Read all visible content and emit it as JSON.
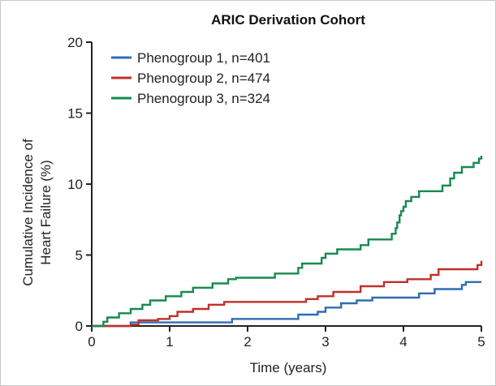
{
  "chart_data": {
    "type": "line",
    "title": "ARIC Derivation Cohort",
    "xlabel": "Time (years)",
    "ylabel_lines": [
      "Cumulative Incidence of",
      "Heart Failure (%)"
    ],
    "xlim": [
      0,
      5
    ],
    "ylim": [
      0,
      20
    ],
    "x_ticks": [
      "0",
      "1",
      "2",
      "3",
      "4",
      "5"
    ],
    "y_ticks": [
      "0",
      "5",
      "10",
      "15",
      "20"
    ],
    "grid": false,
    "legend_position": "top-left",
    "step": true,
    "series": [
      {
        "name": "Phenogroup 1, n=401",
        "color": "#2f6db5",
        "points": [
          [
            0,
            0
          ],
          [
            0.5,
            0.25
          ],
          [
            1.8,
            0.5
          ],
          [
            2.65,
            0.8
          ],
          [
            2.9,
            1.0
          ],
          [
            3.0,
            1.3
          ],
          [
            3.2,
            1.6
          ],
          [
            3.4,
            1.8
          ],
          [
            3.6,
            2.0
          ],
          [
            4.2,
            2.3
          ],
          [
            4.4,
            2.6
          ],
          [
            4.75,
            2.9
          ],
          [
            4.8,
            3.1
          ],
          [
            5.0,
            3.1
          ]
        ]
      },
      {
        "name": "Phenogroup 2, n=474",
        "color": "#c0302a",
        "points": [
          [
            0,
            0
          ],
          [
            0.5,
            0.1
          ],
          [
            0.6,
            0.4
          ],
          [
            0.85,
            0.5
          ],
          [
            1.0,
            0.7
          ],
          [
            1.1,
            1.0
          ],
          [
            1.3,
            1.2
          ],
          [
            1.5,
            1.5
          ],
          [
            1.7,
            1.7
          ],
          [
            2.75,
            1.9
          ],
          [
            2.9,
            2.1
          ],
          [
            3.1,
            2.4
          ],
          [
            3.45,
            2.8
          ],
          [
            3.75,
            3.1
          ],
          [
            4.05,
            3.3
          ],
          [
            4.35,
            3.6
          ],
          [
            4.45,
            4.0
          ],
          [
            4.95,
            4.3
          ],
          [
            5.0,
            4.6
          ]
        ]
      },
      {
        "name": "Phenogroup 3, n=324",
        "color": "#178a4f",
        "points": [
          [
            0,
            0
          ],
          [
            0.15,
            0.3
          ],
          [
            0.2,
            0.6
          ],
          [
            0.35,
            0.9
          ],
          [
            0.5,
            1.2
          ],
          [
            0.65,
            1.5
          ],
          [
            0.75,
            1.8
          ],
          [
            0.95,
            2.1
          ],
          [
            1.15,
            2.4
          ],
          [
            1.3,
            2.7
          ],
          [
            1.55,
            3.0
          ],
          [
            1.75,
            3.3
          ],
          [
            1.85,
            3.4
          ],
          [
            2.35,
            3.7
          ],
          [
            2.65,
            4.1
          ],
          [
            2.7,
            4.4
          ],
          [
            2.95,
            4.8
          ],
          [
            3.0,
            5.1
          ],
          [
            3.15,
            5.4
          ],
          [
            3.45,
            5.7
          ],
          [
            3.55,
            6.1
          ],
          [
            3.85,
            6.5
          ],
          [
            3.9,
            6.9
          ],
          [
            3.92,
            7.3
          ],
          [
            3.95,
            7.8
          ],
          [
            3.97,
            8.1
          ],
          [
            4.0,
            8.4
          ],
          [
            4.03,
            8.8
          ],
          [
            4.1,
            9.1
          ],
          [
            4.2,
            9.5
          ],
          [
            4.5,
            9.9
          ],
          [
            4.6,
            10.4
          ],
          [
            4.65,
            10.8
          ],
          [
            4.75,
            11.2
          ],
          [
            4.9,
            11.5
          ],
          [
            4.97,
            11.8
          ],
          [
            5.0,
            12.0
          ]
        ]
      }
    ]
  }
}
